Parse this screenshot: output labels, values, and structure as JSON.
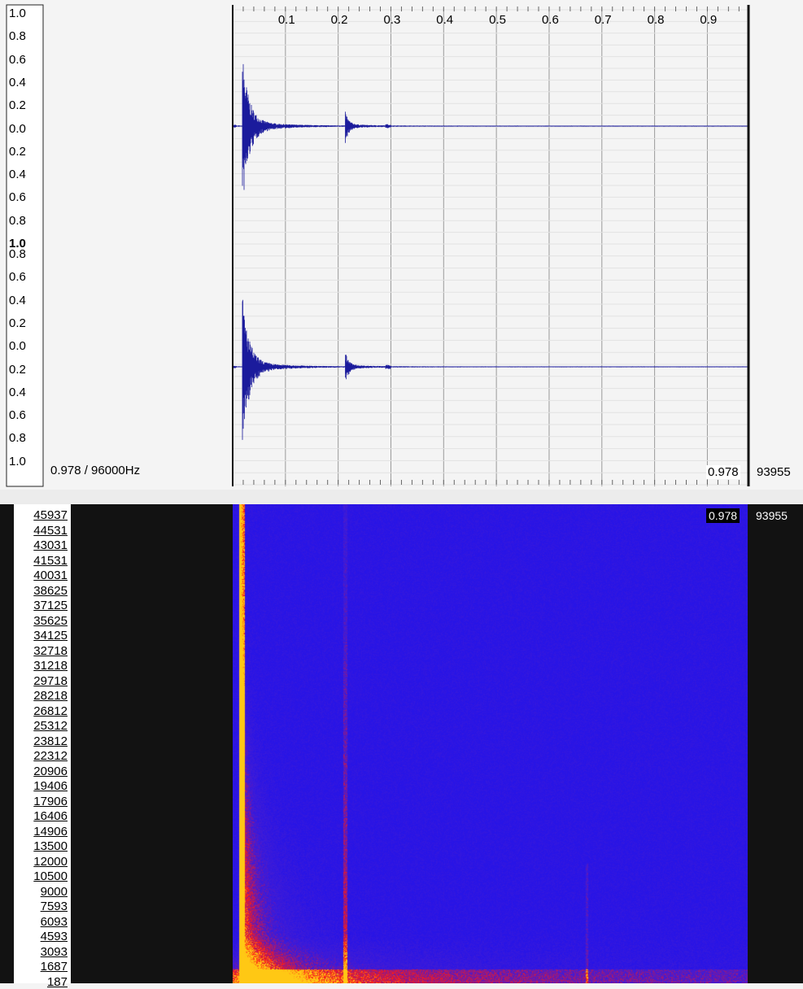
{
  "waveform": {
    "time_ruler": [
      "0.1",
      "0.2",
      "0.3",
      "0.4",
      "0.5",
      "0.6",
      "0.7",
      "0.8",
      "0.9"
    ],
    "channel_top_labels": [
      "1.0",
      "0.8",
      "0.6",
      "0.4",
      "0.2",
      "0.0",
      "0.2",
      "0.4",
      "0.6",
      "0.8",
      "1.0"
    ],
    "channel_bottom_labels": [
      "0.8",
      "0.6",
      "0.4",
      "0.2",
      "0.0",
      "0.2",
      "0.4",
      "0.6",
      "0.8",
      "1.0"
    ],
    "info_label": "0.978 / 96000Hz",
    "end_time": "0.978",
    "end_sample": "93955",
    "waveform_color": "#1b1b9c"
  },
  "spectrogram": {
    "frequency_labels": [
      "45937",
      "44531",
      "43031",
      "41531",
      "40031",
      "38625",
      "37125",
      "35625",
      "34125",
      "32718",
      "31218",
      "29718",
      "28218",
      "26812",
      "25312",
      "23812",
      "22312",
      "20906",
      "19406",
      "17906",
      "16406",
      "14906",
      "13500",
      "12000",
      "10500",
      "9000",
      "7593",
      "6093",
      "4593",
      "3093",
      "1687",
      "187"
    ],
    "end_time": "0.978",
    "end_sample": "93955",
    "low_color": "#2a1ce8",
    "high_color": "#ff1a12"
  }
}
